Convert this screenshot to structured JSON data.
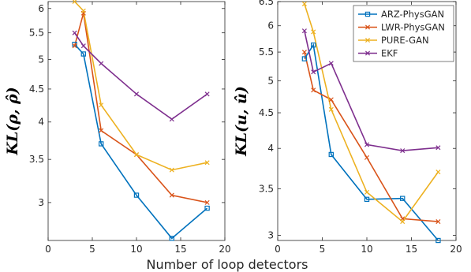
{
  "figure": {
    "xlabel": "Number of loop detectors"
  },
  "chart_data": [
    {
      "type": "line",
      "ylabel": "KL(ρ, ρ̂)",
      "yscale": "log",
      "xlim": [
        0,
        20
      ],
      "ylim": [
        2.62,
        6.15
      ],
      "xticks": [
        0,
        5,
        10,
        15,
        20
      ],
      "yticks": [
        3,
        3.5,
        4,
        4.5,
        5,
        5.5,
        6
      ],
      "x": [
        3,
        4,
        6,
        10,
        14,
        18
      ],
      "series": [
        {
          "name": "ARZ-PhysGAN",
          "color": "#0072BD",
          "marker": "square",
          "values": [
            5.28,
            5.1,
            3.7,
            3.08,
            2.64,
            2.94
          ]
        },
        {
          "name": "LWR-PhysGAN",
          "color": "#D95319",
          "marker": "x",
          "values": [
            5.25,
            5.9,
            3.88,
            3.56,
            3.08,
            3.0
          ]
        },
        {
          "name": "PURE-GAN",
          "color": "#EDB120",
          "marker": "x",
          "values": [
            6.15,
            5.95,
            4.25,
            3.56,
            3.37,
            3.46
          ]
        },
        {
          "name": "EKF",
          "color": "#7E2F8E",
          "marker": "x",
          "values": [
            5.5,
            5.25,
            4.93,
            4.42,
            4.04,
            4.42
          ]
        }
      ]
    },
    {
      "type": "line",
      "ylabel": "KL(u, û)",
      "yscale": "log",
      "xlim": [
        0,
        20
      ],
      "ylim": [
        2.95,
        6.5
      ],
      "xticks": [
        0,
        5,
        10,
        15,
        20
      ],
      "yticks": [
        3,
        3.5,
        4,
        4.5,
        5,
        5.5,
        6,
        6.5
      ],
      "x": [
        3,
        4,
        6,
        10,
        14,
        18
      ],
      "legend": {
        "location": "top-right"
      },
      "series": [
        {
          "name": "ARZ-PhysGAN",
          "color": "#0072BD",
          "marker": "square",
          "values": [
            5.38,
            5.63,
            3.92,
            3.38,
            3.39,
            2.95
          ]
        },
        {
          "name": "LWR-PhysGAN",
          "color": "#D95319",
          "marker": "x",
          "values": [
            5.5,
            4.85,
            4.7,
            3.88,
            3.17,
            3.14
          ]
        },
        {
          "name": "PURE-GAN",
          "color": "#EDB120",
          "marker": "x",
          "values": [
            6.45,
            5.88,
            4.55,
            3.46,
            3.14,
            3.7
          ]
        },
        {
          "name": "EKF",
          "color": "#7E2F8E",
          "marker": "x",
          "values": [
            5.9,
            5.15,
            5.3,
            4.05,
            3.97,
            4.01
          ]
        }
      ]
    }
  ]
}
